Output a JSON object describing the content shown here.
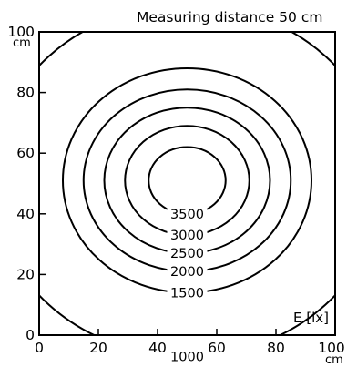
{
  "chart_data": {
    "type": "contour",
    "title": "Measuring distance 50 cm",
    "xlabel": "",
    "ylabel": "",
    "x_unit": "cm",
    "y_unit": "cm",
    "xlim": [
      0,
      100
    ],
    "ylim": [
      0,
      100
    ],
    "x_ticks": [
      "0",
      "20",
      "40",
      "60",
      "80",
      "100"
    ],
    "y_ticks": [
      "0",
      "20",
      "40",
      "60",
      "80",
      "100"
    ],
    "grid": false,
    "quantity_label": "E [lx]",
    "center": [
      50,
      51
    ],
    "levels": [
      {
        "value": 1000,
        "label": "1000",
        "rx": 66,
        "ry": 58
      },
      {
        "value": 1500,
        "label": "1500",
        "rx": 42,
        "ry": 37
      },
      {
        "value": 2000,
        "label": "2000",
        "rx": 35,
        "ry": 30
      },
      {
        "value": 2500,
        "label": "2500",
        "rx": 28,
        "ry": 24
      },
      {
        "value": 3000,
        "label": "3000",
        "rx": 21,
        "ry": 18
      },
      {
        "value": 3500,
        "label": "3500",
        "rx": 13,
        "ry": 11
      }
    ]
  }
}
